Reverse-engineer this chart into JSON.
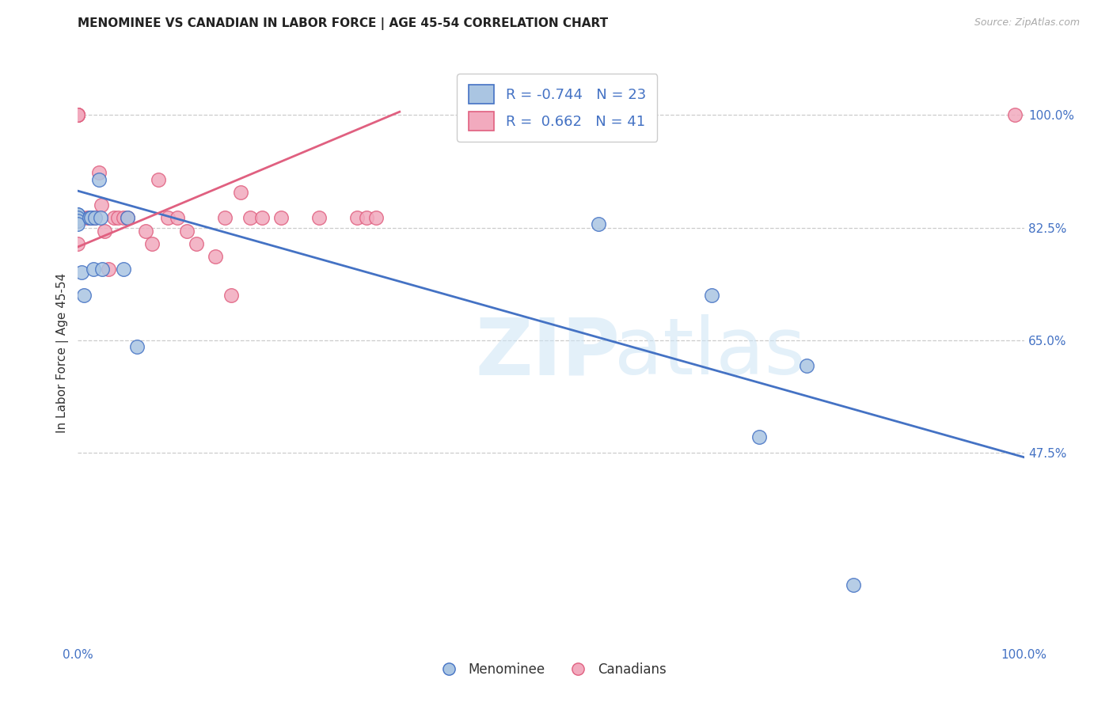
{
  "title": "MENOMINEE VS CANADIAN IN LABOR FORCE | AGE 45-54 CORRELATION CHART",
  "source": "Source: ZipAtlas.com",
  "ylabel": "In Labor Force | Age 45-54",
  "xlim": [
    0.0,
    1.0
  ],
  "ylim": [
    0.18,
    1.08
  ],
  "xtick_positions": [
    0.0,
    0.25,
    0.5,
    0.75,
    1.0
  ],
  "xticklabels": [
    "0.0%",
    "",
    "",
    "",
    "100.0%"
  ],
  "ytick_positions": [
    0.475,
    0.65,
    0.825,
    1.0
  ],
  "ytick_labels": [
    "47.5%",
    "65.0%",
    "82.5%",
    "100.0%"
  ],
  "menominee_color": "#aac5e2",
  "canadian_color": "#f2aabe",
  "trendline_blue": "#4472c4",
  "trendline_pink": "#e06080",
  "legend_R_menominee": "-0.744",
  "legend_N_menominee": "23",
  "legend_R_canadian": "0.662",
  "legend_N_canadian": "41",
  "menominee_x": [
    0.0,
    0.0,
    0.0,
    0.0,
    0.0,
    0.0,
    0.004,
    0.006,
    0.012,
    0.014,
    0.016,
    0.018,
    0.022,
    0.024,
    0.026,
    0.048,
    0.052,
    0.062,
    0.55,
    0.67,
    0.72,
    0.77,
    0.82
  ],
  "menominee_y": [
    0.84,
    0.845,
    0.845,
    0.84,
    0.835,
    0.83,
    0.755,
    0.72,
    0.84,
    0.84,
    0.76,
    0.84,
    0.9,
    0.84,
    0.76,
    0.76,
    0.84,
    0.64,
    0.83,
    0.72,
    0.5,
    0.61,
    0.27
  ],
  "canadian_x": [
    0.0,
    0.0,
    0.0,
    0.0,
    0.0,
    0.0,
    0.0,
    0.0,
    0.0,
    0.0,
    0.005,
    0.01,
    0.015,
    0.018,
    0.022,
    0.025,
    0.028,
    0.032,
    0.038,
    0.042,
    0.048,
    0.052,
    0.072,
    0.078,
    0.085,
    0.095,
    0.105,
    0.115,
    0.125,
    0.145,
    0.155,
    0.162,
    0.172,
    0.182,
    0.195,
    0.215,
    0.255,
    0.295,
    0.305,
    0.315,
    0.99
  ],
  "canadian_y": [
    1.0,
    1.0,
    1.0,
    1.0,
    1.0,
    1.0,
    1.0,
    0.84,
    0.835,
    0.8,
    0.84,
    0.84,
    0.84,
    0.84,
    0.91,
    0.86,
    0.82,
    0.76,
    0.84,
    0.84,
    0.84,
    0.84,
    0.82,
    0.8,
    0.9,
    0.84,
    0.84,
    0.82,
    0.8,
    0.78,
    0.84,
    0.72,
    0.88,
    0.84,
    0.84,
    0.84,
    0.84,
    0.84,
    0.84,
    0.84,
    1.0
  ],
  "blue_line_x": [
    0.0,
    1.0
  ],
  "blue_line_y": [
    0.882,
    0.468
  ],
  "pink_line_x": [
    0.0,
    0.34
  ],
  "pink_line_y": [
    0.795,
    1.005
  ]
}
